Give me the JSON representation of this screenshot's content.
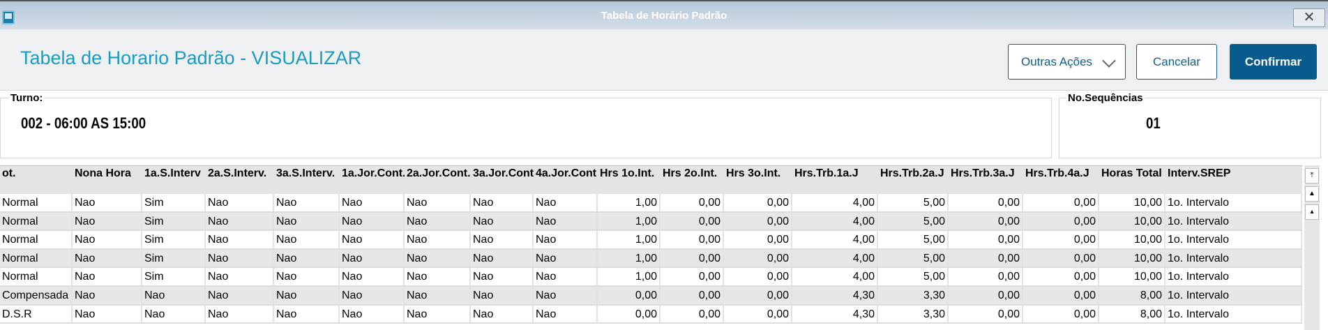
{
  "window": {
    "title": "Tabela de Horário Padrão"
  },
  "header": {
    "title": "Tabela de Horario Padrão - VISUALIZAR",
    "outras_label": "Outras Ações",
    "cancel_label": "Cancelar",
    "confirm_label": "Confirmar"
  },
  "turno": {
    "label": "Turno:",
    "value": "002 - 06:00 AS 15:00"
  },
  "sequencias": {
    "label": "No.Sequências",
    "value": "01"
  },
  "table": {
    "columns": [
      "ot.",
      "Nona Hora",
      "1a.S.Interv",
      "2a.S.Interv.",
      "3a.S.Interv.",
      "1a.Jor.Cont.",
      "2a.Jor.Cont.",
      "3a.Jor.Cont",
      "4a.Jor.Cont",
      "Hrs 1o.Int.",
      "Hrs 2o.Int.",
      "Hrs 3o.Int.",
      "Hrs.Trb.1a.J",
      "Hrs.Trb.2a.J",
      "Hrs.Trb.3a.J",
      "Hrs.Trb.4a.J",
      "Horas Total",
      "Interv.SREP"
    ],
    "rows": [
      [
        "Normal",
        "Nao",
        "Sim",
        "Nao",
        "Nao",
        "Nao",
        "Nao",
        "Nao",
        "Nao",
        "1,00",
        "0,00",
        "0,00",
        "4,00",
        "5,00",
        "0,00",
        "0,00",
        "10,00",
        "1o. Intervalo"
      ],
      [
        "Normal",
        "Nao",
        "Sim",
        "Nao",
        "Nao",
        "Nao",
        "Nao",
        "Nao",
        "Nao",
        "1,00",
        "0,00",
        "0,00",
        "4,00",
        "5,00",
        "0,00",
        "0,00",
        "10,00",
        "1o. Intervalo"
      ],
      [
        "Normal",
        "Nao",
        "Sim",
        "Nao",
        "Nao",
        "Nao",
        "Nao",
        "Nao",
        "Nao",
        "1,00",
        "0,00",
        "0,00",
        "4,00",
        "5,00",
        "0,00",
        "0,00",
        "10,00",
        "1o. Intervalo"
      ],
      [
        "Normal",
        "Nao",
        "Sim",
        "Nao",
        "Nao",
        "Nao",
        "Nao",
        "Nao",
        "Nao",
        "1,00",
        "0,00",
        "0,00",
        "4,00",
        "5,00",
        "0,00",
        "0,00",
        "10,00",
        "1o. Intervalo"
      ],
      [
        "Normal",
        "Nao",
        "Sim",
        "Nao",
        "Nao",
        "Nao",
        "Nao",
        "Nao",
        "Nao",
        "1,00",
        "0,00",
        "0,00",
        "4,00",
        "5,00",
        "0,00",
        "0,00",
        "10,00",
        "1o. Intervalo"
      ],
      [
        "Compensada",
        "Nao",
        "Nao",
        "Nao",
        "Nao",
        "Nao",
        "Nao",
        "Nao",
        "Nao",
        "0,00",
        "0,00",
        "0,00",
        "4,30",
        "3,30",
        "0,00",
        "0,00",
        "8,00",
        "1o. Intervalo"
      ],
      [
        "D.S.R",
        "Nao",
        "Nao",
        "Nao",
        "Nao",
        "Nao",
        "Nao",
        "Nao",
        "Nao",
        "0,00",
        "0,00",
        "0,00",
        "4,30",
        "3,30",
        "0,00",
        "0,00",
        "8,00",
        "1o. Intervalo"
      ]
    ]
  },
  "icons": {
    "app": "app-window-icon",
    "close": "close-icon",
    "dropdown": "chevron-down-icon",
    "scroll_first": "scroll-top-icon",
    "scroll_page_up": "scroll-page-up-icon",
    "scroll_up": "scroll-up-icon"
  },
  "colors": {
    "accent": "#189cc4",
    "primary_button": "#085b8d"
  }
}
